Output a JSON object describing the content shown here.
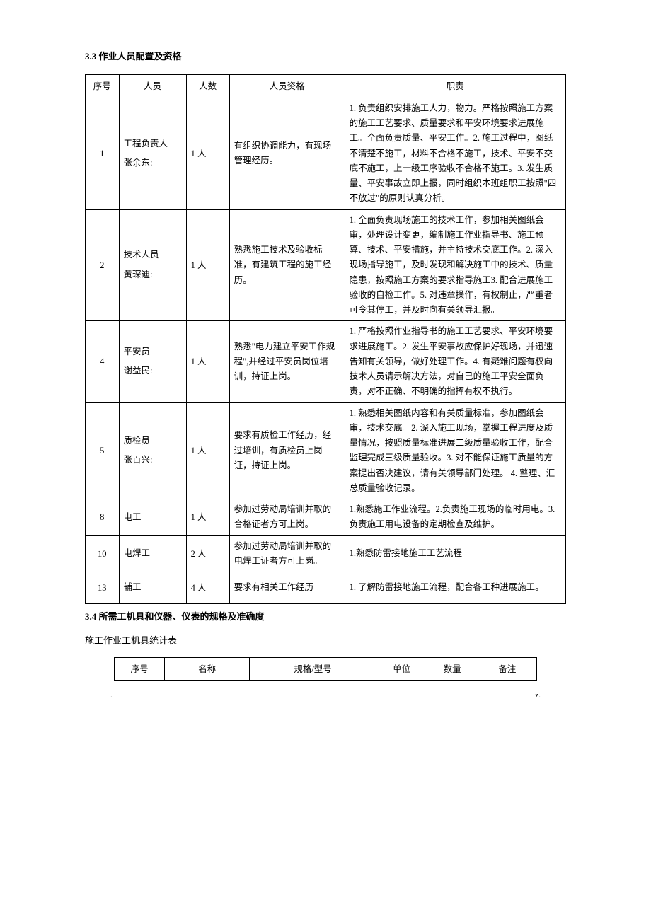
{
  "top_mark": "-",
  "section_3_3": {
    "heading": "3.3 作业人员配置及资格",
    "headers": {
      "seq": "序号",
      "role": "人员",
      "count": "人数",
      "qualification": "人员资格",
      "duty": "职责"
    },
    "rows": [
      {
        "seq": "1",
        "role": "工程负责人\n张余东:",
        "count": "1 人",
        "qualification": "有组织协调能力，有现场管理经历。",
        "duty": "1. 负责组织安排施工人力，物力。严格按照施工方案的施工工艺要求、质量要求和平安环境要求进展施工。全面负责质量、平安工作。2. 施工过程中，图纸不清楚不施工，材料不合格不施工，技术、平安不交底不施工，上一级工序验收不合格不施工。3. 发生质量、平安事故立即上报，同时组织本班组职工按照\"四不放过\"的原则认真分析。"
      },
      {
        "seq": "2",
        "role": "技术人员\n黄琛迪:",
        "count": "1 人",
        "qualification": "熟悉施工技术及验收标准，有建筑工程的施工经历。",
        "duty": "1. 全面负责现场施工的技术工作，参加相关图纸会审，处理设计变更，编制施工作业指导书、施工预算、技术、平安措施，并主持技术交底工作。2. 深入现场指导施工，及时发现和解决施工中的技术、质量隐患，按照施工方案的要求指导施工3. 配合进展施工验收的自检工作。5. 对违章操作，有权制止，严重者可令其停工，并及时向有关领导汇报。"
      },
      {
        "seq": "4",
        "role": "平安员\n谢益民:",
        "count": "1 人",
        "qualification": "熟悉\"电力建立平安工作规程\",并经过平安员岗位培训，持证上岗。",
        "duty": "1. 严格按照作业指导书的施工工艺要求、平安环境要求进展施工。2. 发生平安事故应保护好现场，并迅速告知有关领导，做好处理工作。4. 有疑难问题有权向技术人员请示解决方法，对自己的施工平安全面负责，对不正确、不明确的指挥有权不执行。"
      },
      {
        "seq": "5",
        "role": "质检员\n张百兴:",
        "count": "1 人",
        "qualification": "要求有质检工作经历，经过培训，有质检员上岗证，持证上岗。",
        "duty": "1. 熟悉相关图纸内容和有关质量标准，参加图纸会审，技术交底。2. 深入施工现场，掌握工程进度及质量情况，按照质量标准进展二级质量验收工作，配合监理完成三级质量验收。3. 对不能保证施工质量的方案提出否决建议，请有关领导部门处理。 4. 整理、汇总质量验收记录。"
      },
      {
        "seq": "8",
        "role": "电工",
        "count": "1 人",
        "qualification": "参加过劳动局培训并取的合格证者方可上岗。",
        "duty": "1.熟悉施工作业流程。2.负责施工现场的临时用电。3.负责施工用电设备的定期检查及维护。"
      },
      {
        "seq": "10",
        "role": "电焊工",
        "count": "2 人",
        "qualification": "参加过劳动局培训并取的电焊工证者方可上岗。",
        "duty": "1.熟悉防雷接地施工工艺流程"
      },
      {
        "seq": "13",
        "role": "辅工",
        "count": "4 人",
        "qualification": "要求有相关工作经历",
        "duty": "1. 了解防雷接地施工流程，配合各工种进展施工。"
      }
    ]
  },
  "section_3_4": {
    "heading": "3.4 所需工机具和仪器、仪表的规格及准确度",
    "sub_heading": "施工作业工机具统计表",
    "headers": {
      "seq": "序号",
      "name": "名称",
      "spec": "规格/型号",
      "unit": "单位",
      "qty": "数量",
      "note": "备注"
    }
  },
  "footer": {
    "left": ".",
    "right": "z."
  }
}
